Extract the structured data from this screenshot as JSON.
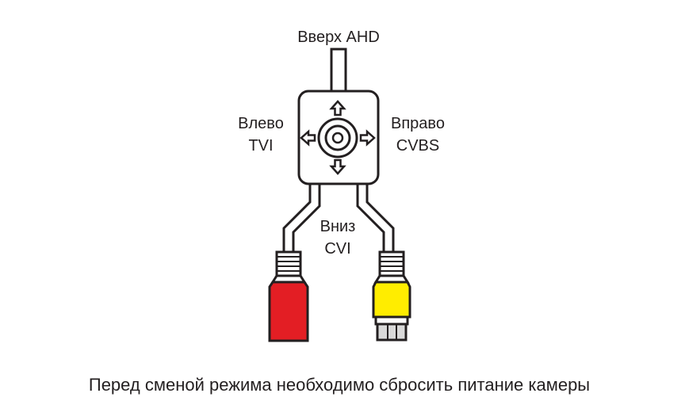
{
  "labels": {
    "up": "Вверх AHD",
    "left_line1": "Влево",
    "left_line2": "TVI",
    "right_line1": "Вправо",
    "right_line2": "CVBS",
    "down_line1": "Вниз",
    "down_line2": "CVI"
  },
  "footer": {
    "note": "Перед сменой режима необходимо сбросить питание камеры"
  },
  "colors": {
    "outline": "#231f20",
    "left_plug": "#e31e24",
    "right_plug": "#ffed00",
    "bnc_body": "#d9d9d9"
  },
  "icons": [
    "arrow-up-icon",
    "arrow-down-icon",
    "arrow-left-icon",
    "arrow-right-icon",
    "joystick-icon"
  ]
}
